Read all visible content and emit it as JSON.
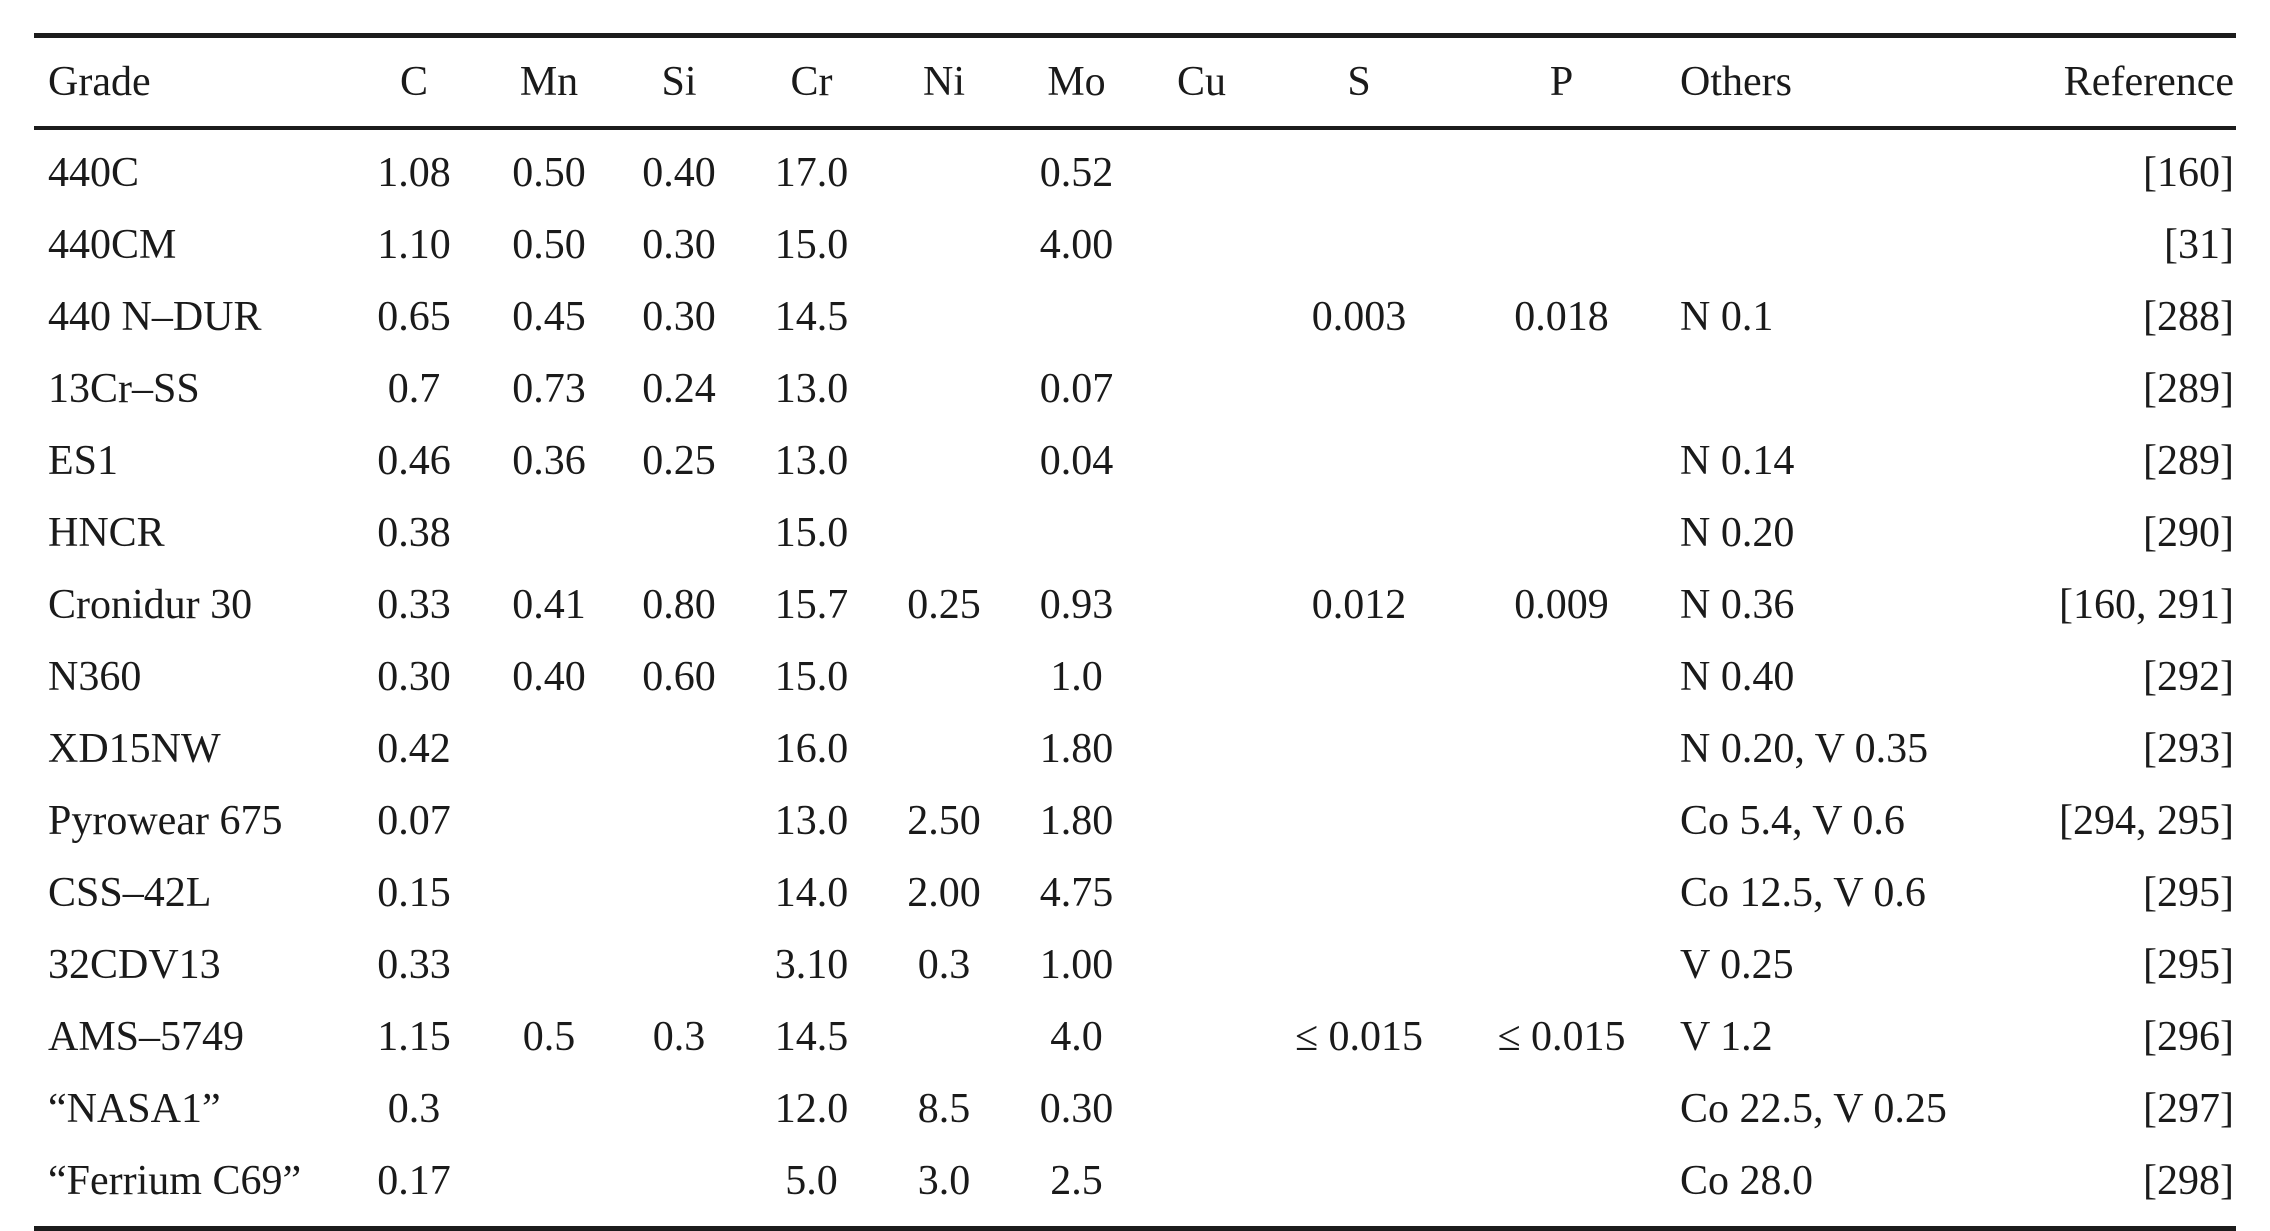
{
  "table": {
    "columns": [
      "Grade",
      "C",
      "Mn",
      "Si",
      "Cr",
      "Ni",
      "Mo",
      "Cu",
      "S",
      "P",
      "Others",
      "Reference"
    ],
    "rows": [
      {
        "grade": "440C",
        "c": "1.08",
        "mn": "0.50",
        "si": "0.40",
        "cr": "17.0",
        "ni": "",
        "mo": "0.52",
        "cu": "",
        "s": "",
        "p": "",
        "others": "",
        "reference": "[160]"
      },
      {
        "grade": "440CM",
        "c": "1.10",
        "mn": "0.50",
        "si": "0.30",
        "cr": "15.0",
        "ni": "",
        "mo": "4.00",
        "cu": "",
        "s": "",
        "p": "",
        "others": "",
        "reference": "[31]"
      },
      {
        "grade": "440 N–DUR",
        "c": "0.65",
        "mn": "0.45",
        "si": "0.30",
        "cr": "14.5",
        "ni": "",
        "mo": "",
        "cu": "",
        "s": "0.003",
        "p": "0.018",
        "others": "N 0.1",
        "reference": "[288]"
      },
      {
        "grade": "13Cr–SS",
        "c": "0.7",
        "mn": "0.73",
        "si": "0.24",
        "cr": "13.0",
        "ni": "",
        "mo": "0.07",
        "cu": "",
        "s": "",
        "p": "",
        "others": "",
        "reference": "[289]"
      },
      {
        "grade": "ES1",
        "c": "0.46",
        "mn": "0.36",
        "si": "0.25",
        "cr": "13.0",
        "ni": "",
        "mo": "0.04",
        "cu": "",
        "s": "",
        "p": "",
        "others": "N 0.14",
        "reference": "[289]"
      },
      {
        "grade": "HNCR",
        "c": "0.38",
        "mn": "",
        "si": "",
        "cr": "15.0",
        "ni": "",
        "mo": "",
        "cu": "",
        "s": "",
        "p": "",
        "others": "N 0.20",
        "reference": "[290]"
      },
      {
        "grade": "Cronidur 30",
        "c": "0.33",
        "mn": "0.41",
        "si": "0.80",
        "cr": "15.7",
        "ni": "0.25",
        "mo": "0.93",
        "cu": "",
        "s": "0.012",
        "p": "0.009",
        "others": "N 0.36",
        "reference": "[160, 291]"
      },
      {
        "grade": "N360",
        "c": "0.30",
        "mn": "0.40",
        "si": "0.60",
        "cr": "15.0",
        "ni": "",
        "mo": "1.0",
        "cu": "",
        "s": "",
        "p": "",
        "others": "N 0.40",
        "reference": "[292]"
      },
      {
        "grade": "XD15NW",
        "c": "0.42",
        "mn": "",
        "si": "",
        "cr": "16.0",
        "ni": "",
        "mo": "1.80",
        "cu": "",
        "s": "",
        "p": "",
        "others": "N 0.20, V 0.35",
        "reference": "[293]"
      },
      {
        "grade": "Pyrowear 675",
        "c": "0.07",
        "mn": "",
        "si": "",
        "cr": "13.0",
        "ni": "2.50",
        "mo": "1.80",
        "cu": "",
        "s": "",
        "p": "",
        "others": "Co 5.4, V 0.6",
        "reference": "[294, 295]"
      },
      {
        "grade": "CSS–42L",
        "c": "0.15",
        "mn": "",
        "si": "",
        "cr": "14.0",
        "ni": "2.00",
        "mo": "4.75",
        "cu": "",
        "s": "",
        "p": "",
        "others": "Co 12.5, V 0.6",
        "reference": "[295]"
      },
      {
        "grade": "32CDV13",
        "c": "0.33",
        "mn": "",
        "si": "",
        "cr": "3.10",
        "ni": "0.3",
        "mo": "1.00",
        "cu": "",
        "s": "",
        "p": "",
        "others": "V 0.25",
        "reference": "[295]"
      },
      {
        "grade": "AMS–5749",
        "c": "1.15",
        "mn": "0.5",
        "si": "0.3",
        "cr": "14.5",
        "ni": "",
        "mo": "4.0",
        "cu": "",
        "s": "≤ 0.015",
        "p": "≤ 0.015",
        "others": "V 1.2",
        "reference": "[296]"
      },
      {
        "grade": "“NASA1”",
        "c": "0.3",
        "mn": "",
        "si": "",
        "cr": "12.0",
        "ni": "8.5",
        "mo": "0.30",
        "cu": "",
        "s": "",
        "p": "",
        "others": "Co 22.5, V 0.25",
        "reference": "[297]"
      },
      {
        "grade": "“Ferrium C69”",
        "c": "0.17",
        "mn": "",
        "si": "",
        "cr": "5.0",
        "ni": "3.0",
        "mo": "2.5",
        "cu": "",
        "s": "",
        "p": "",
        "others": "Co 28.0",
        "reference": "[298]"
      }
    ]
  }
}
